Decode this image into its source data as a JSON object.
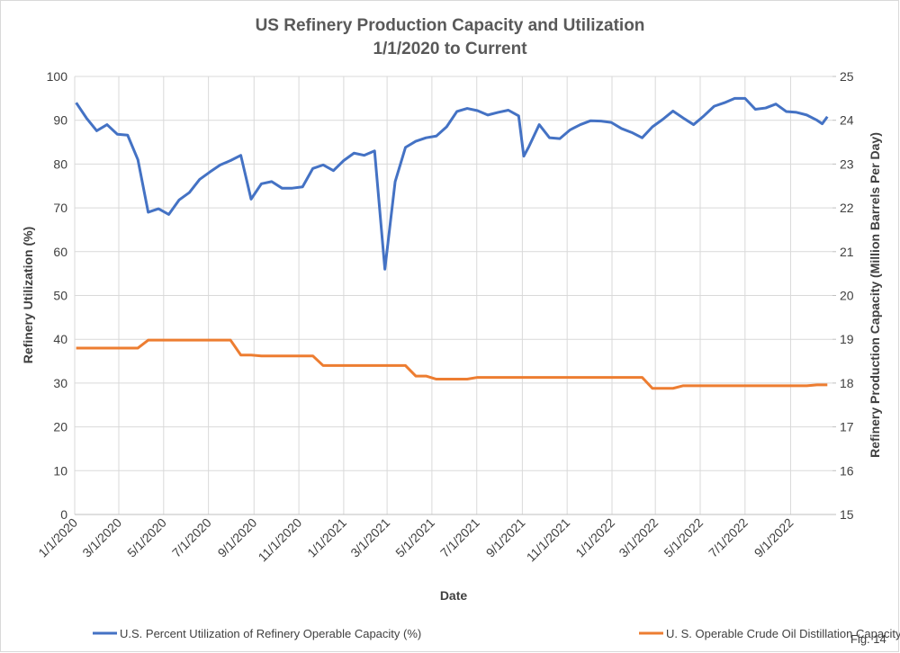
{
  "chart_data": {
    "type": "line",
    "title": [
      "US Refinery Production Capacity and Utilization",
      "1/1/2020 to Current"
    ],
    "x_label": "Date",
    "y_label": "Refinery Utilization (%)",
    "y2_label": "Refinery Production Capacity (Million Barrels Per Day)",
    "annotation": "Fig. 14",
    "x": [
      "1/3/2020",
      "1/17/2020",
      "1/31/2020",
      "2/14/2020",
      "2/28/2020",
      "3/13/2020",
      "3/27/2020",
      "4/10/2020",
      "4/24/2020",
      "5/8/2020",
      "5/22/2020",
      "6/5/2020",
      "6/19/2020",
      "7/3/2020",
      "7/17/2020",
      "7/31/2020",
      "8/14/2020",
      "8/28/2020",
      "9/11/2020",
      "9/25/2020",
      "10/9/2020",
      "10/23/2020",
      "11/6/2020",
      "11/20/2020",
      "12/4/2020",
      "12/18/2020",
      "1/1/2021",
      "1/15/2021",
      "1/29/2021",
      "2/12/2021",
      "2/26/2021",
      "3/12/2021",
      "3/26/2021",
      "4/9/2021",
      "4/23/2021",
      "5/7/2021",
      "5/21/2021",
      "6/4/2021",
      "6/18/2021",
      "7/2/2021",
      "7/16/2021",
      "7/30/2021",
      "8/13/2021",
      "8/27/2021",
      "9/3/2021",
      "9/10/2021",
      "9/24/2021",
      "10/8/2021",
      "10/22/2021",
      "11/5/2021",
      "11/19/2021",
      "12/3/2021",
      "12/17/2021",
      "12/31/2021",
      "1/14/2022",
      "1/28/2022",
      "2/11/2022",
      "2/25/2022",
      "3/11/2022",
      "3/25/2022",
      "4/8/2022",
      "4/22/2022",
      "5/6/2022",
      "5/20/2022",
      "6/3/2022",
      "6/17/2022",
      "7/1/2022",
      "7/15/2022",
      "7/29/2022",
      "8/12/2022",
      "8/26/2022",
      "9/9/2022",
      "9/23/2022",
      "10/7/2022",
      "10/14/2022",
      "10/21/2022"
    ],
    "series": [
      {
        "name": "U.S. Percent Utilization of Refinery Operable Capacity (%)",
        "color": "#4472c4",
        "values": [
          94,
          90.5,
          87.6,
          89,
          86.8,
          86.6,
          81,
          69,
          69.8,
          68.5,
          71.8,
          73.5,
          76.5,
          78.2,
          79.8,
          80.8,
          82,
          72,
          75.5,
          76,
          74.5,
          74.5,
          74.8,
          79,
          79.8,
          78.5,
          80.8,
          82.5,
          82,
          83,
          56,
          76,
          83.8,
          85.2,
          86,
          86.4,
          88.5,
          92,
          92.7,
          92.2,
          91.2,
          91.8,
          92.3,
          91,
          81.8,
          84,
          89,
          86,
          85.8,
          87.8,
          89,
          89.9,
          89.8,
          89.5,
          88.1,
          87.2,
          86,
          88.5,
          90.2,
          92.1,
          90.5,
          89,
          91,
          93.2,
          94,
          95,
          95,
          92.5,
          92.8,
          93.7,
          92,
          91.8,
          91.2,
          90,
          89.2,
          90.8
        ]
      },
      {
        "name": "U. S. Operable Crude Oil Distillation Capacity (MMbbl/d)",
        "color": "#ed7d31",
        "axis": "y2",
        "values": [
          18.8,
          18.8,
          18.8,
          18.8,
          18.8,
          18.8,
          18.8,
          18.98,
          18.98,
          18.98,
          18.98,
          18.98,
          18.98,
          18.98,
          18.98,
          18.98,
          18.64,
          18.64,
          18.62,
          18.62,
          18.62,
          18.62,
          18.62,
          18.62,
          18.4,
          18.4,
          18.4,
          18.4,
          18.4,
          18.4,
          18.4,
          18.4,
          18.4,
          18.16,
          18.16,
          18.09,
          18.09,
          18.09,
          18.09,
          18.13,
          18.13,
          18.13,
          18.13,
          18.13,
          18.13,
          18.13,
          18.13,
          18.13,
          18.13,
          18.13,
          18.13,
          18.13,
          18.13,
          18.13,
          18.13,
          18.13,
          18.13,
          17.88,
          17.88,
          17.88,
          17.94,
          17.94,
          17.94,
          17.94,
          17.94,
          17.94,
          17.94,
          17.94,
          17.94,
          17.94,
          17.94,
          17.94,
          17.94,
          17.96,
          17.96,
          17.96
        ]
      }
    ],
    "xlim": [
      "1/1/2020",
      "10/28/2022"
    ],
    "xticks": [
      "1/1/2020",
      "3/1/2020",
      "5/1/2020",
      "7/1/2020",
      "9/1/2020",
      "11/1/2020",
      "1/1/2021",
      "3/1/2021",
      "5/1/2021",
      "7/1/2021",
      "9/1/2021",
      "11/1/2021",
      "1/1/2022",
      "3/1/2022",
      "5/1/2022",
      "7/1/2022",
      "9/1/2022"
    ],
    "ylim": [
      0,
      100
    ],
    "yticks": [
      0,
      10,
      20,
      30,
      40,
      50,
      60,
      70,
      80,
      90,
      100
    ],
    "y2lim": [
      15,
      25
    ],
    "y2ticks": [
      15,
      16,
      17,
      18,
      19,
      20,
      21,
      22,
      23,
      24,
      25
    ],
    "grid": true,
    "legend": "bottom"
  }
}
